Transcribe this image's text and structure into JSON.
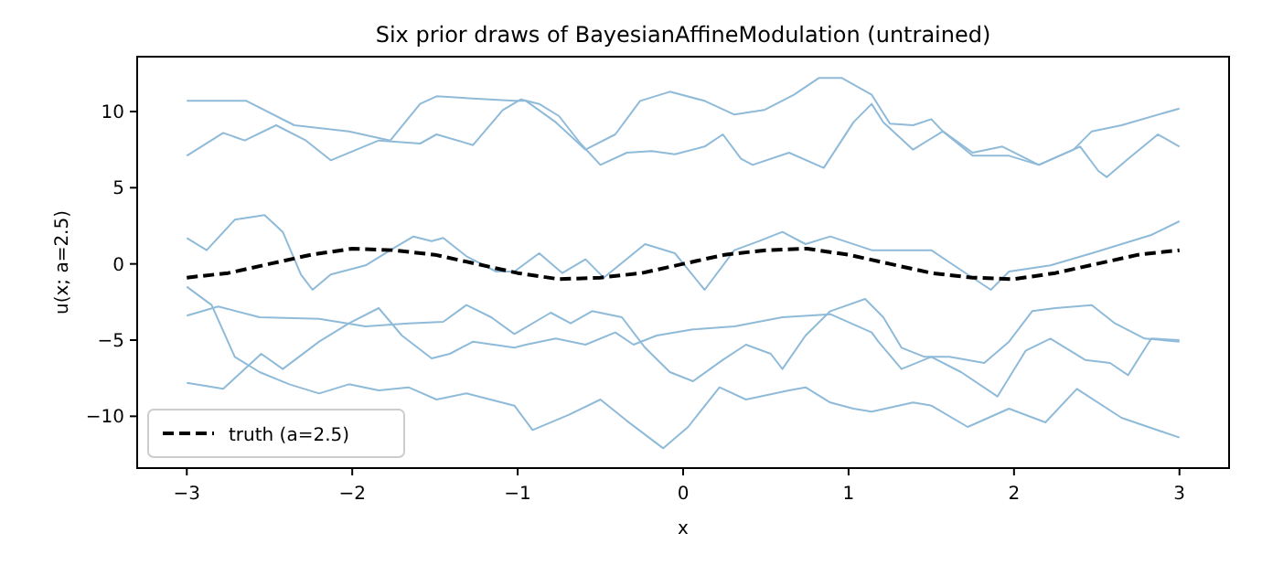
{
  "chart_data": {
    "type": "line",
    "title": "Six prior draws of BayesianAffineModulation (untrained)",
    "xlabel": "x",
    "ylabel": "u(x; a=2.5)",
    "xlim": [
      -3.3,
      3.3
    ],
    "ylim": [
      -13.4,
      13.6
    ],
    "xticks": [
      {
        "value": -3,
        "label": "−3"
      },
      {
        "value": -2,
        "label": "−2"
      },
      {
        "value": -1,
        "label": "−1"
      },
      0,
      1,
      2,
      3
    ],
    "yticks": [
      {
        "value": -10,
        "label": "−10"
      },
      {
        "value": -5,
        "label": "−5"
      },
      0,
      5,
      10
    ],
    "grid": false,
    "legend": "bottom left",
    "marker": "none",
    "series": [
      {
        "color": "#8fbbd9",
        "x": [
          -3.0,
          -2.64,
          -2.35,
          -2.02,
          -1.77,
          -1.59,
          -1.49,
          -1.02,
          -0.95,
          -0.77,
          -0.59,
          -0.41,
          -0.26,
          -0.08,
          0.13,
          0.31,
          0.49,
          0.67,
          0.82,
          0.96,
          1.14,
          1.25,
          1.39,
          1.5,
          1.57,
          1.75,
          1.93,
          2.15,
          2.36,
          2.47,
          2.65,
          3.0
        ],
        "values": [
          10.7,
          10.7,
          9.1,
          8.7,
          8.1,
          10.5,
          11.0,
          10.7,
          10.7,
          9.3,
          7.5,
          8.5,
          10.7,
          11.3,
          10.7,
          9.8,
          10.1,
          11.1,
          12.2,
          12.2,
          11.1,
          9.2,
          9.1,
          9.5,
          8.7,
          7.3,
          7.7,
          6.5,
          7.5,
          8.7,
          9.1,
          10.2
        ]
      },
      {
        "color": "#8fbbd9",
        "x": [
          -3.0,
          -2.78,
          -2.65,
          -2.46,
          -2.28,
          -2.13,
          -1.84,
          -1.59,
          -1.49,
          -1.27,
          -1.09,
          -0.98,
          -0.87,
          -0.75,
          -0.62,
          -0.5,
          -0.34,
          -0.19,
          -0.05,
          0.13,
          0.24,
          0.35,
          0.42,
          0.64,
          0.85,
          1.03,
          1.14,
          1.21,
          1.39,
          1.57,
          1.75,
          1.97,
          2.15,
          2.4,
          2.51,
          2.56,
          2.69,
          2.87,
          3.0
        ],
        "values": [
          7.1,
          8.6,
          8.1,
          9.1,
          8.1,
          6.8,
          8.1,
          7.9,
          8.5,
          7.8,
          10.1,
          10.8,
          10.5,
          9.7,
          7.9,
          6.5,
          7.3,
          7.4,
          7.2,
          7.7,
          8.5,
          6.9,
          6.5,
          7.3,
          6.3,
          9.3,
          10.5,
          9.3,
          7.5,
          8.7,
          7.1,
          7.1,
          6.5,
          7.7,
          6.1,
          5.7,
          6.9,
          8.5,
          7.7
        ]
      },
      {
        "color": "#8fbbd9",
        "x": [
          -3.0,
          -2.88,
          -2.71,
          -2.53,
          -2.42,
          -2.31,
          -2.24,
          -2.13,
          -1.92,
          -1.74,
          -1.63,
          -1.52,
          -1.45,
          -1.31,
          -1.13,
          -1.02,
          -0.87,
          -0.73,
          -0.59,
          -0.48,
          -0.23,
          -0.05,
          0.13,
          0.31,
          0.46,
          0.6,
          0.74,
          0.89,
          1.14,
          1.25,
          1.5,
          1.61,
          1.86,
          1.97,
          2.22,
          2.47,
          2.65,
          2.83,
          3.0
        ],
        "values": [
          1.7,
          0.9,
          2.9,
          3.2,
          2.1,
          -0.7,
          -1.7,
          -0.7,
          -0.1,
          1.1,
          1.8,
          1.5,
          1.7,
          0.5,
          -0.5,
          -0.5,
          0.7,
          -0.6,
          0.3,
          -0.9,
          1.3,
          0.7,
          -1.7,
          0.9,
          1.5,
          2.1,
          1.3,
          1.8,
          0.9,
          0.9,
          0.9,
          0.1,
          -1.7,
          -0.5,
          -0.1,
          0.7,
          1.3,
          1.9,
          2.8
        ]
      },
      {
        "color": "#8fbbd9",
        "x": [
          -3.0,
          -2.85,
          -2.71,
          -2.56,
          -2.38,
          -2.2,
          -2.02,
          -1.84,
          -1.66,
          -1.49,
          -1.31,
          -1.02,
          -0.91,
          -0.69,
          -0.5,
          -0.34,
          -0.12,
          0.03,
          0.22,
          0.38,
          0.64,
          0.74,
          0.89,
          1.03,
          1.14,
          1.39,
          1.5,
          1.72,
          1.97,
          2.19,
          2.38,
          2.65,
          3.0
        ],
        "values": [
          -1.5,
          -2.7,
          -6.1,
          -7.1,
          -7.9,
          -8.5,
          -7.9,
          -8.3,
          -8.1,
          -8.9,
          -8.5,
          -9.3,
          -10.9,
          -9.9,
          -8.9,
          -10.3,
          -12.1,
          -10.7,
          -8.1,
          -8.9,
          -8.3,
          -8.1,
          -9.1,
          -9.5,
          -9.7,
          -9.1,
          -9.3,
          -10.7,
          -9.5,
          -10.4,
          -8.2,
          -10.1,
          -11.4
        ]
      },
      {
        "color": "#8fbbd9",
        "x": [
          -3.0,
          -2.81,
          -2.56,
          -2.2,
          -1.92,
          -1.66,
          -1.45,
          -1.31,
          -1.16,
          -1.02,
          -0.8,
          -0.68,
          -0.55,
          -0.37,
          -0.23,
          -0.08,
          0.06,
          0.24,
          0.38,
          0.53,
          0.6,
          0.74,
          0.89,
          1.1,
          1.21,
          1.32,
          1.46,
          1.61,
          1.82,
          1.97,
          2.11,
          2.25,
          2.47,
          2.61,
          2.79,
          3.0
        ],
        "values": [
          -3.4,
          -2.8,
          -3.5,
          -3.6,
          -4.1,
          -3.9,
          -3.8,
          -2.7,
          -3.5,
          -4.6,
          -3.2,
          -3.9,
          -3.1,
          -3.5,
          -5.5,
          -7.1,
          -7.7,
          -6.3,
          -5.3,
          -5.9,
          -6.9,
          -4.7,
          -3.1,
          -2.3,
          -3.5,
          -5.5,
          -6.1,
          -6.1,
          -6.5,
          -5.1,
          -3.1,
          -2.9,
          -2.7,
          -3.9,
          -4.9,
          -5.1
        ]
      },
      {
        "color": "#8fbbd9",
        "x": [
          -3.0,
          -2.78,
          -2.55,
          -2.42,
          -2.2,
          -2.02,
          -1.84,
          -1.7,
          -1.52,
          -1.41,
          -1.27,
          -1.02,
          -0.95,
          -0.77,
          -0.59,
          -0.41,
          -0.3,
          -0.16,
          0.06,
          0.31,
          0.6,
          0.89,
          1.14,
          1.18,
          1.32,
          1.5,
          1.68,
          1.9,
          2.07,
          2.22,
          2.43,
          2.58,
          2.69,
          2.83,
          3.0
        ],
        "values": [
          -7.8,
          -8.2,
          -5.9,
          -6.9,
          -5.1,
          -3.9,
          -2.9,
          -4.7,
          -6.2,
          -5.9,
          -5.1,
          -5.5,
          -5.3,
          -4.9,
          -5.3,
          -4.5,
          -5.3,
          -4.7,
          -4.3,
          -4.1,
          -3.5,
          -3.3,
          -4.5,
          -5.1,
          -6.9,
          -6.1,
          -7.1,
          -8.7,
          -5.7,
          -4.9,
          -6.3,
          -6.5,
          -7.3,
          -4.9,
          -5.0
        ]
      },
      {
        "name": "truth (a=2.5)",
        "color": "#000000",
        "line_style": "dashed",
        "x": [
          -3,
          -2.75,
          -2.5,
          -2.25,
          -2,
          -1.75,
          -1.5,
          -1.25,
          -1,
          -0.75,
          -0.5,
          -0.25,
          0,
          0.25,
          0.5,
          0.75,
          1,
          1.25,
          1.5,
          1.75,
          2,
          2.25,
          2.5,
          2.75,
          3
        ],
        "values": [
          -0.9,
          -0.6,
          0,
          0.6,
          1,
          0.9,
          0.6,
          0,
          -0.6,
          -1,
          -0.9,
          -0.6,
          0,
          0.6,
          0.9,
          1,
          0.6,
          0,
          -0.6,
          -0.9,
          -1,
          -0.6,
          0,
          0.6,
          0.9
        ]
      }
    ]
  }
}
